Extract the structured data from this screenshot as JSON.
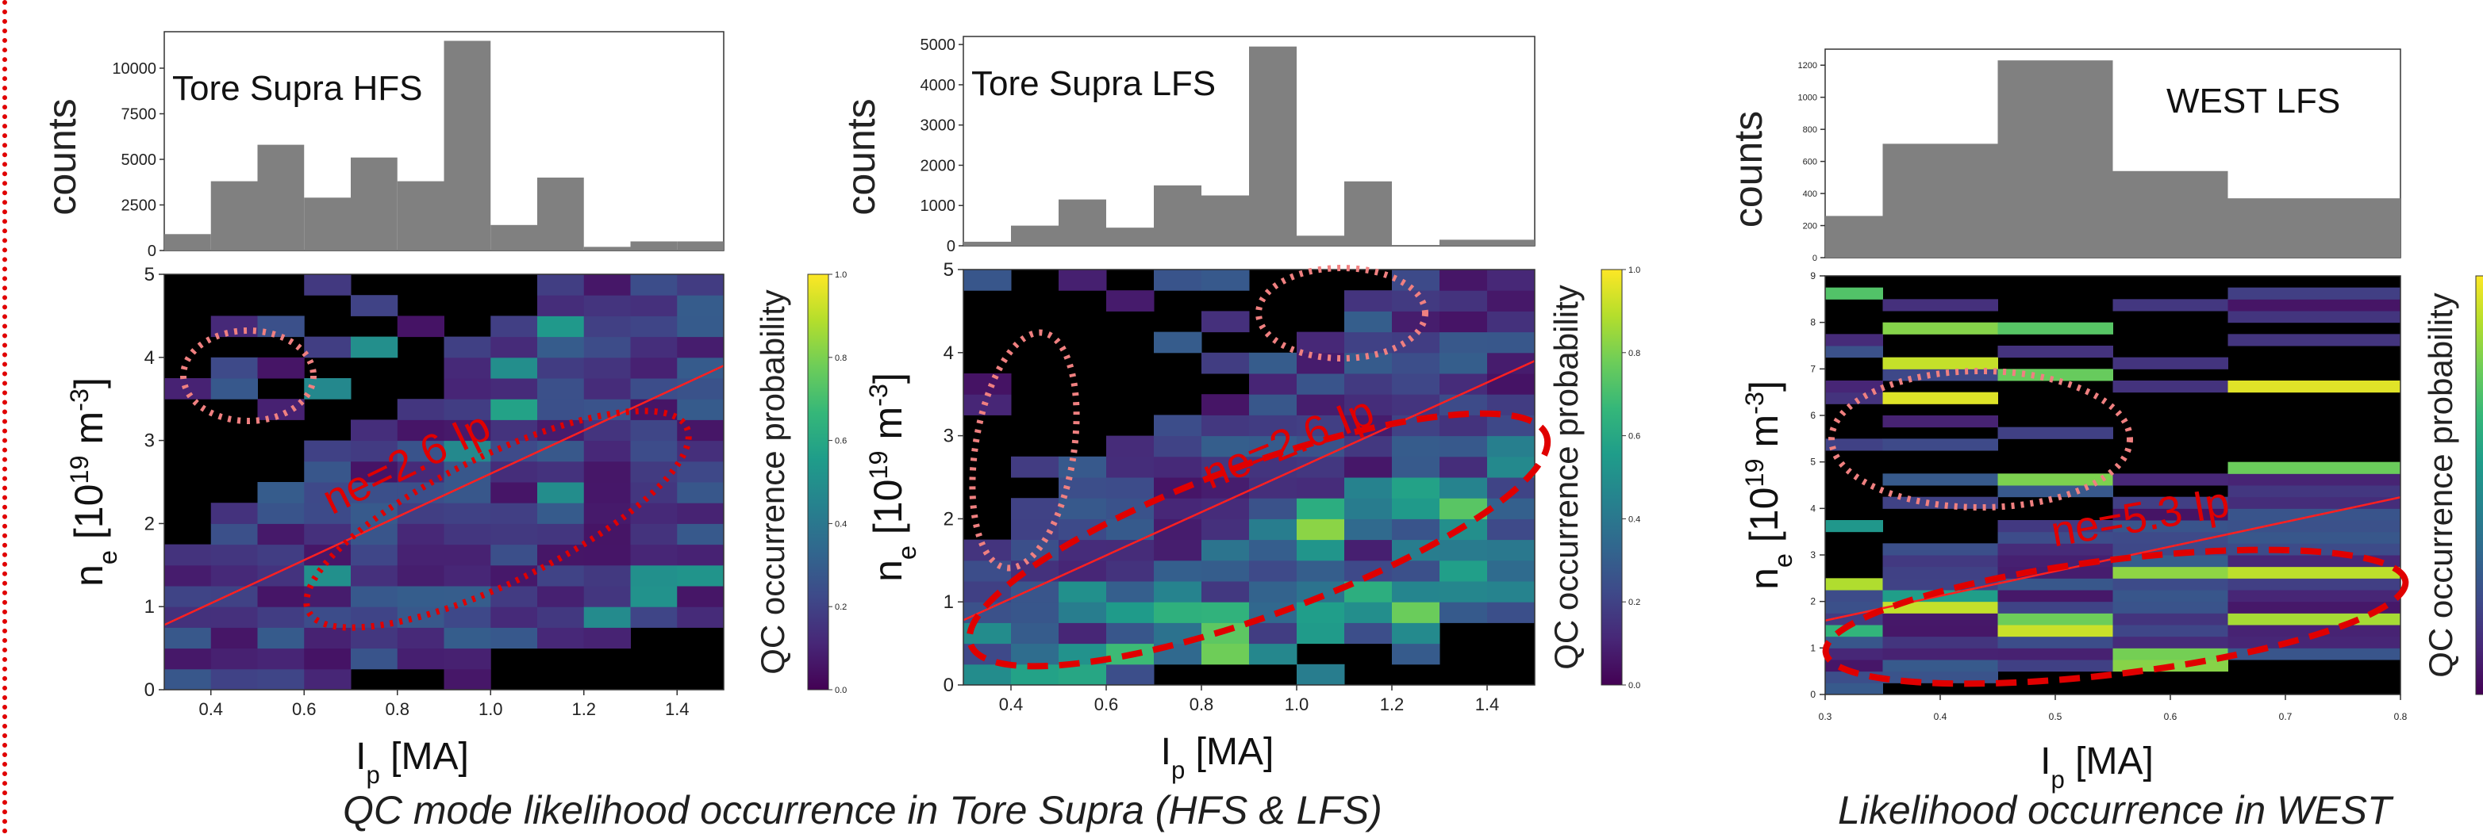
{
  "captions": {
    "left": "QC mode likelihood occurrence in Tore Supra (HFS & LFS)",
    "right": "Likelihood occurrence in WEST"
  },
  "colors": {
    "histogram": "#808080",
    "background_cell": "#000000",
    "fit_line": "#ff2020",
    "annotation_dotted": "#f08080",
    "annotation_dashed": "#e00000",
    "page_rule": "#e00000"
  },
  "colormap": "viridis",
  "chart_data": [
    {
      "type": "heatmap",
      "title": "Tore Supra HFS",
      "histogram": {
        "ylabel": "counts",
        "ylim": [
          0,
          12000
        ],
        "yticks": [
          0,
          2500,
          5000,
          7500,
          10000
        ],
        "bins": [
          0.3,
          0.4,
          0.5,
          0.6,
          0.7,
          0.8,
          0.9,
          1.0,
          1.1,
          1.2,
          1.3,
          1.4,
          1.5
        ],
        "values": [
          900,
          3800,
          5800,
          2900,
          5100,
          3800,
          11500,
          1400,
          4000,
          200,
          500,
          500
        ]
      },
      "xlabel": "I_p [MA]",
      "ylabel": "n_e [10^19 m^-3]",
      "xlim": [
        0.3,
        1.5
      ],
      "ylim": [
        0,
        5
      ],
      "xticks": [
        0.4,
        0.6,
        0.8,
        1.0,
        1.2,
        1.4
      ],
      "yticks": [
        0,
        1,
        2,
        3,
        4,
        5
      ],
      "colorbar": {
        "label": "QC occurrence probability",
        "ticks": [
          0.0,
          0.2,
          0.4,
          0.6,
          0.8,
          1.0
        ]
      },
      "fit_label": "n_e=2.6 I_p",
      "fit": {
        "slope": 2.6
      }
    },
    {
      "type": "heatmap",
      "title": "Tore Supra LFS",
      "histogram": {
        "ylabel": "counts",
        "ylim": [
          0,
          5200
        ],
        "yticks": [
          0,
          1000,
          2000,
          3000,
          4000,
          5000
        ],
        "bins": [
          0.3,
          0.4,
          0.5,
          0.6,
          0.7,
          0.8,
          0.9,
          1.0,
          1.1,
          1.2,
          1.3,
          1.4,
          1.5
        ],
        "values": [
          100,
          500,
          1150,
          450,
          1500,
          1250,
          4950,
          250,
          1600,
          20,
          150,
          150
        ]
      },
      "xlabel": "I_p [MA]",
      "ylabel": "n_e [10^19 m^-3]",
      "xlim": [
        0.3,
        1.5
      ],
      "ylim": [
        0,
        5
      ],
      "xticks": [
        0.4,
        0.6,
        0.8,
        1.0,
        1.2,
        1.4
      ],
      "yticks": [
        0,
        1,
        2,
        3,
        4,
        5
      ],
      "colorbar": {
        "label": "QC occurrence probability",
        "ticks": [
          0.0,
          0.2,
          0.4,
          0.6,
          0.8,
          1.0
        ]
      },
      "fit_label": "n_e=2.6 I_p",
      "fit": {
        "slope": 2.6
      }
    },
    {
      "type": "heatmap",
      "title": "WEST LFS",
      "histogram": {
        "ylabel": "counts",
        "ylim": [
          0,
          1300
        ],
        "yticks": [
          0,
          200,
          400,
          600,
          800,
          1000,
          1200
        ],
        "bins": [
          0.3,
          0.35,
          0.45,
          0.55,
          0.65,
          0.8
        ],
        "values": [
          260,
          710,
          1230,
          540,
          370
        ]
      },
      "xlabel": "I_p [MA]",
      "ylabel": "n_e [10^19 m^-3]",
      "xlim": [
        0.3,
        0.8
      ],
      "ylim": [
        0,
        9
      ],
      "xticks": [
        0.3,
        0.4,
        0.5,
        0.6,
        0.7,
        0.8
      ],
      "yticks": [
        0,
        1,
        2,
        3,
        4,
        5,
        6,
        7,
        8,
        9
      ],
      "colorbar": {
        "label": "QC occurrence probability",
        "ticks": []
      },
      "fit_label": "n_e=5.3 I_p",
      "fit": {
        "slope": 5.3
      }
    }
  ]
}
